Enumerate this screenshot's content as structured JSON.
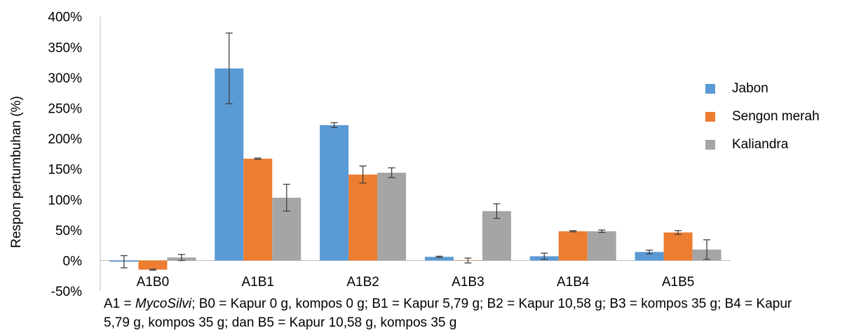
{
  "chart_data": {
    "type": "bar",
    "ylabel": "Respon pertumbuhan (%)",
    "xlabel": "",
    "ylim": [
      -50,
      400
    ],
    "yticks": [
      -50,
      0,
      50,
      100,
      150,
      200,
      250,
      300,
      350,
      400
    ],
    "ytick_labels": [
      "-50%",
      "0%",
      "50%",
      "100%",
      "150%",
      "200%",
      "250%",
      "300%",
      "350%",
      "400%"
    ],
    "categories": [
      "A1B0",
      "A1B1",
      "A1B2",
      "A1B3",
      "A1B4",
      "A1B5"
    ],
    "series": [
      {
        "name": "Jabon",
        "color": "#5B9BD5",
        "values": [
          -2,
          315,
          222,
          6,
          7,
          14
        ],
        "errors": [
          10,
          58,
          4,
          1,
          5,
          3
        ]
      },
      {
        "name": "Sengon merah",
        "color": "#ED7D31",
        "values": [
          -15,
          167,
          141,
          0,
          48,
          46
        ],
        "errors": [
          1,
          1,
          14,
          4,
          1,
          3
        ]
      },
      {
        "name": "Kaliandra",
        "color": "#A5A5A5",
        "values": [
          5,
          103,
          144,
          81,
          48,
          18
        ],
        "errors": [
          5,
          22,
          8,
          12,
          2,
          16
        ]
      }
    ],
    "legend_position": "right",
    "grid": false
  },
  "caption": {
    "prefix": "A1 = ",
    "italic": "MycoSilvi",
    "rest": "; B0 = Kapur 0 g, kompos 0 g; B1 = Kapur 5,79 g; B2 = Kapur 10,58 g; B3 = kompos 35 g; B4 = Kapur 5,79 g, kompos 35 g; dan B5 = Kapur 10,58 g, kompos 35 g"
  }
}
